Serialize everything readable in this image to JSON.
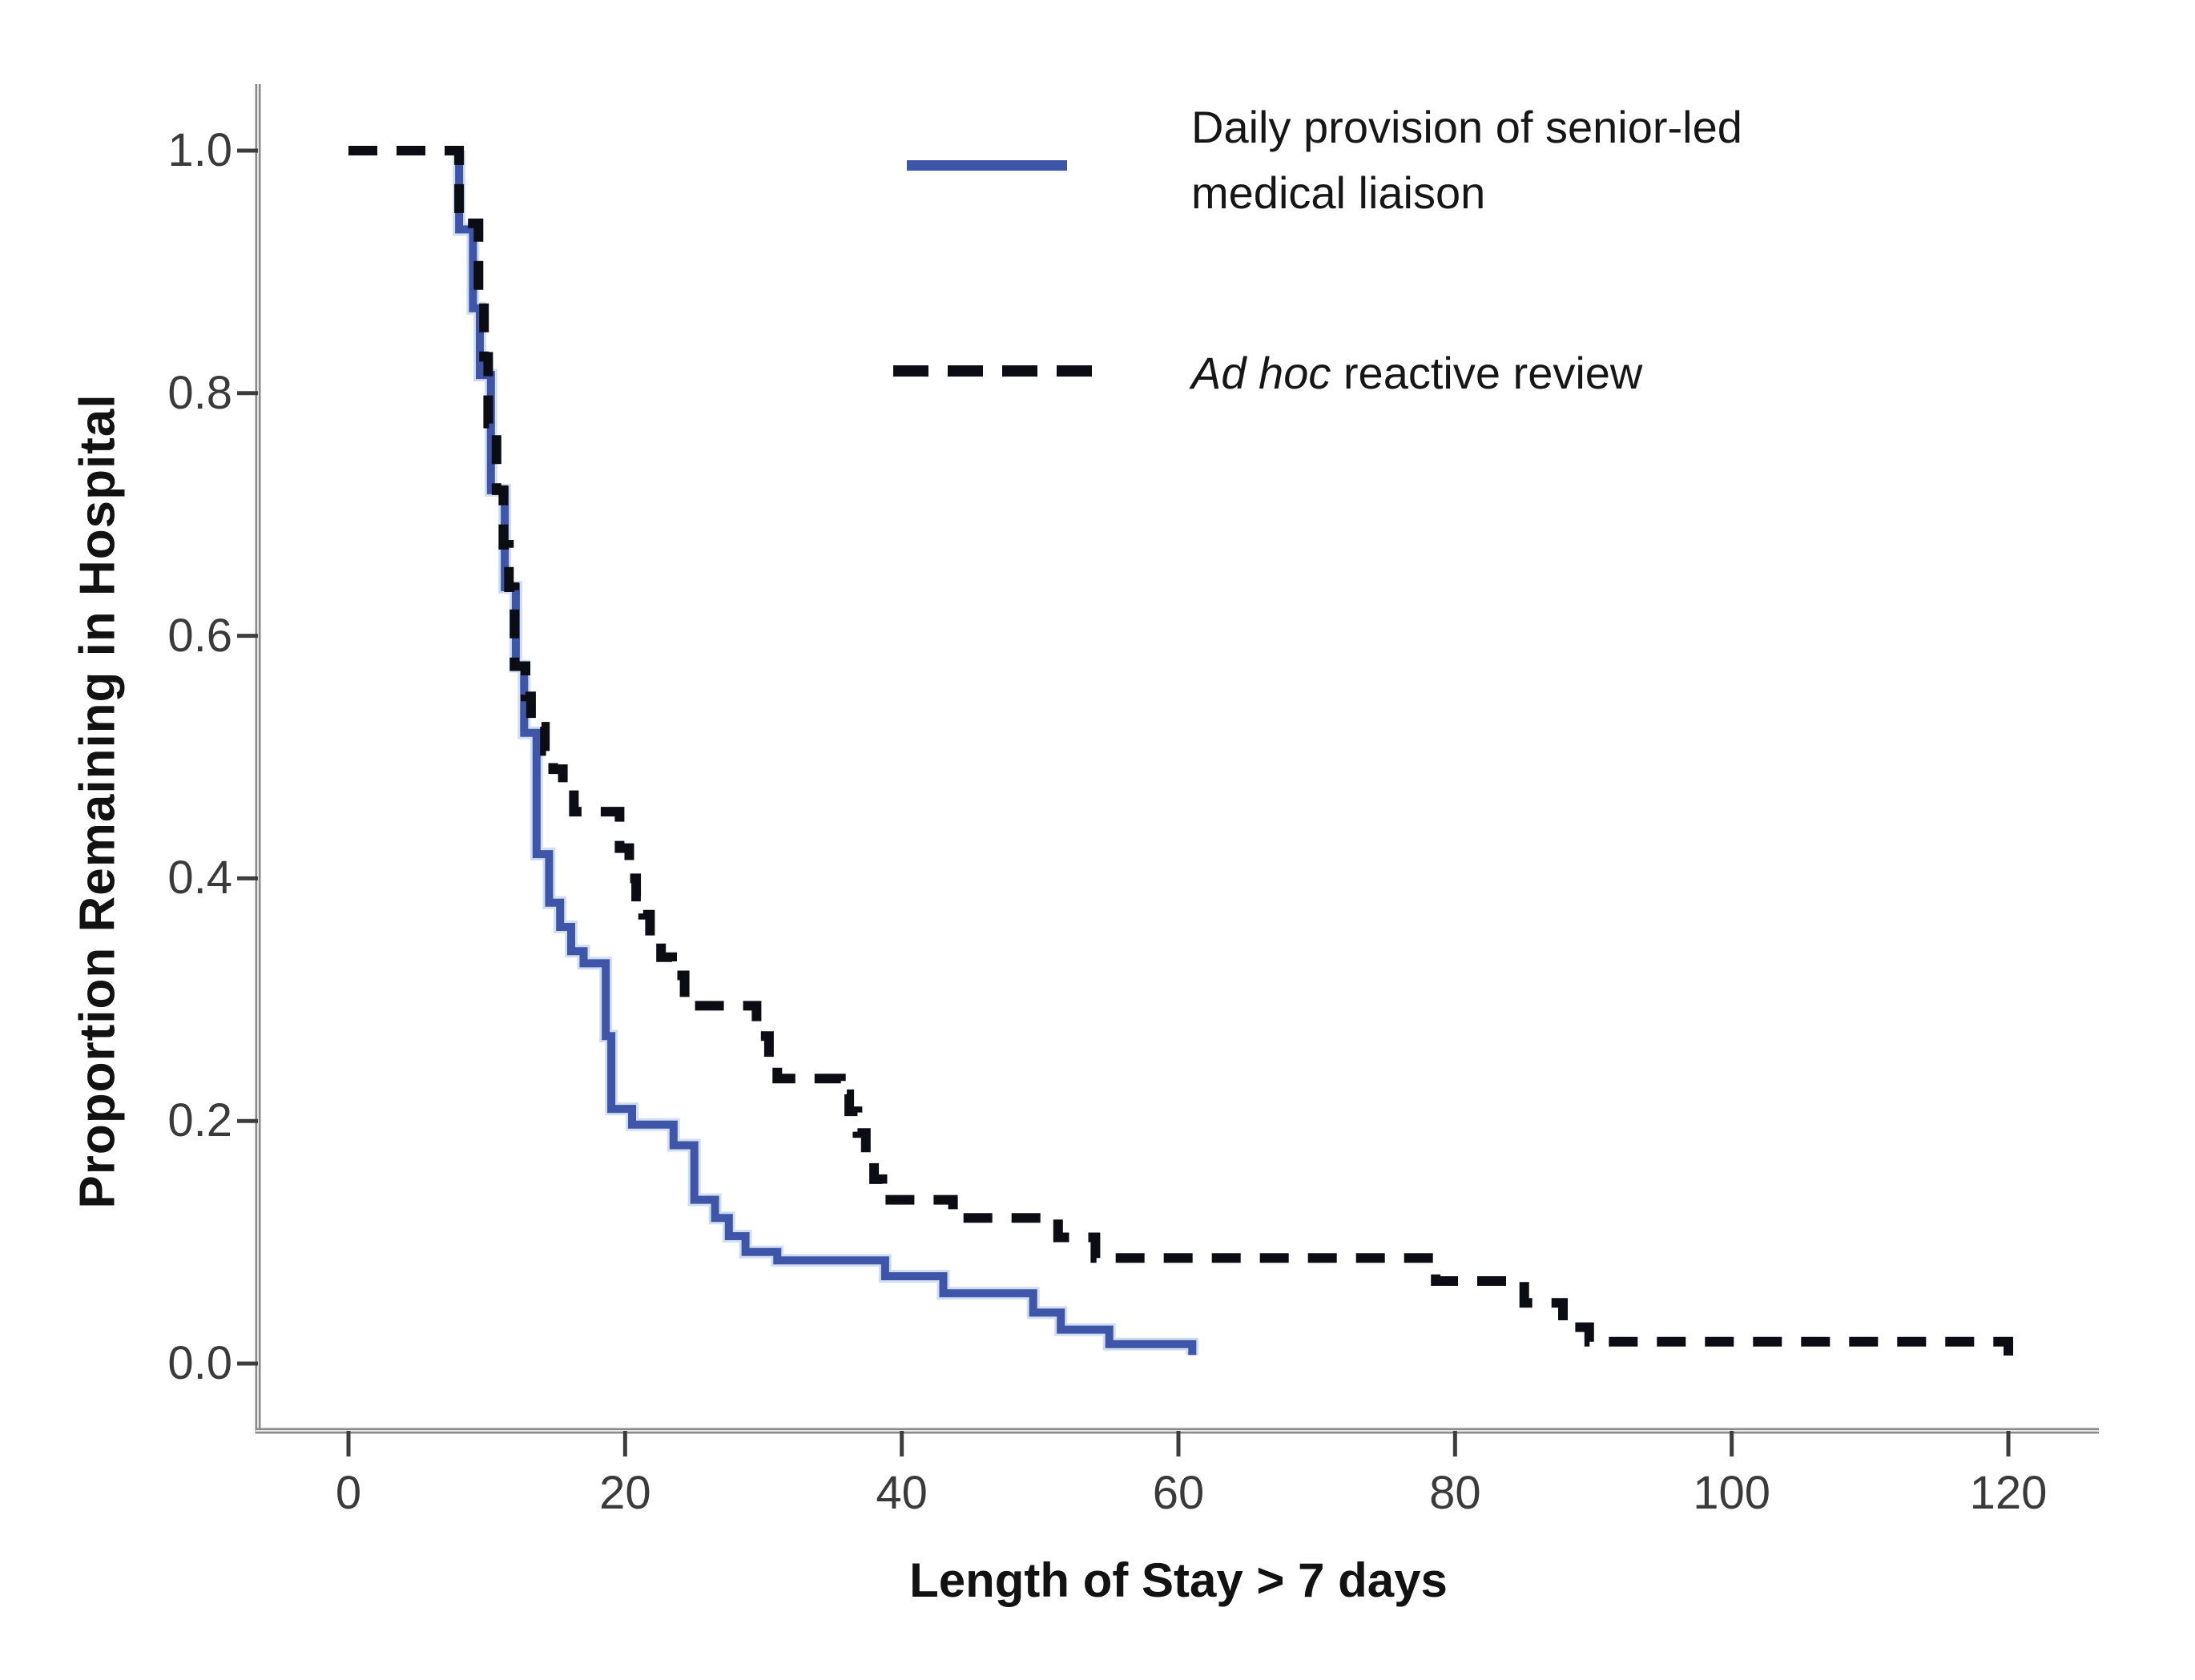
{
  "chart_data": {
    "type": "line",
    "subtype": "kaplan-meier-step",
    "title": "",
    "xlabel": "Length of Stay > 7 days",
    "ylabel": "Proportion Remaining in Hospital",
    "xlim": [
      0,
      120
    ],
    "ylim": [
      0.0,
      1.0
    ],
    "x_tick_values": [
      0,
      20,
      40,
      60,
      80,
      100,
      120
    ],
    "x_tick_labels": [
      "0",
      "20",
      "40",
      "60",
      "80",
      "100",
      "120"
    ],
    "y_tick_values": [
      0.0,
      0.2,
      0.4,
      0.6,
      0.8,
      1.0
    ],
    "y_tick_labels": [
      "0.0",
      "0.2",
      "0.4",
      "0.6",
      "0.8",
      "1.0"
    ],
    "grid": false,
    "legend_position": "top-right-inside",
    "series": [
      {
        "name": "Daily provision of senior-led medical liaison",
        "line_style": "solid",
        "color": "#3f55a8",
        "points": [
          [
            8,
            1.0
          ],
          [
            8,
            0.935
          ],
          [
            9,
            0.935
          ],
          [
            9,
            0.87
          ],
          [
            9.5,
            0.87
          ],
          [
            9.5,
            0.815
          ],
          [
            10.3,
            0.815
          ],
          [
            10.3,
            0.72
          ],
          [
            11.3,
            0.72
          ],
          [
            11.3,
            0.64
          ],
          [
            12.1,
            0.64
          ],
          [
            12.1,
            0.575
          ],
          [
            12.7,
            0.575
          ],
          [
            12.7,
            0.52
          ],
          [
            13.6,
            0.52
          ],
          [
            13.6,
            0.42
          ],
          [
            14.5,
            0.42
          ],
          [
            14.5,
            0.38
          ],
          [
            15.3,
            0.38
          ],
          [
            15.3,
            0.36
          ],
          [
            16.1,
            0.36
          ],
          [
            16.1,
            0.34
          ],
          [
            17,
            0.34
          ],
          [
            17,
            0.33
          ],
          [
            18.6,
            0.33
          ],
          [
            18.6,
            0.27
          ],
          [
            19,
            0.27
          ],
          [
            19,
            0.21
          ],
          [
            20.5,
            0.21
          ],
          [
            20.5,
            0.197
          ],
          [
            23.5,
            0.197
          ],
          [
            23.5,
            0.18
          ],
          [
            25,
            0.18
          ],
          [
            25,
            0.135
          ],
          [
            26.5,
            0.135
          ],
          [
            26.5,
            0.12
          ],
          [
            27.5,
            0.12
          ],
          [
            27.5,
            0.105
          ],
          [
            28.7,
            0.105
          ],
          [
            28.7,
            0.092
          ],
          [
            31,
            0.092
          ],
          [
            31,
            0.085
          ],
          [
            38.8,
            0.085
          ],
          [
            38.8,
            0.072
          ],
          [
            43,
            0.072
          ],
          [
            43,
            0.058
          ],
          [
            49.5,
            0.058
          ],
          [
            49.5,
            0.042
          ],
          [
            51.5,
            0.042
          ],
          [
            51.5,
            0.028
          ],
          [
            55,
            0.028
          ],
          [
            55,
            0.016
          ],
          [
            61,
            0.016
          ],
          [
            61,
            0.007
          ]
        ]
      },
      {
        "name": "Ad hoc reactive review",
        "line_style": "dashed",
        "color": "#0c0c14",
        "points": [
          [
            0,
            1.0
          ],
          [
            8,
            1.0
          ],
          [
            8,
            0.94
          ],
          [
            9.4,
            0.94
          ],
          [
            9.4,
            0.885
          ],
          [
            9.8,
            0.885
          ],
          [
            9.8,
            0.83
          ],
          [
            10.1,
            0.83
          ],
          [
            10.1,
            0.775
          ],
          [
            10.7,
            0.775
          ],
          [
            10.7,
            0.72
          ],
          [
            11.2,
            0.72
          ],
          [
            11.2,
            0.675
          ],
          [
            11.6,
            0.675
          ],
          [
            11.6,
            0.64
          ],
          [
            12,
            0.64
          ],
          [
            12,
            0.575
          ],
          [
            12.8,
            0.575
          ],
          [
            12.8,
            0.55
          ],
          [
            13.2,
            0.55
          ],
          [
            13.2,
            0.525
          ],
          [
            14.2,
            0.525
          ],
          [
            14.2,
            0.505
          ],
          [
            14.8,
            0.505
          ],
          [
            14.8,
            0.49
          ],
          [
            15.5,
            0.49
          ],
          [
            15.5,
            0.475
          ],
          [
            16.3,
            0.475
          ],
          [
            16.3,
            0.455
          ],
          [
            19.6,
            0.455
          ],
          [
            19.6,
            0.425
          ],
          [
            20.3,
            0.425
          ],
          [
            20.3,
            0.4
          ],
          [
            20.8,
            0.4
          ],
          [
            20.8,
            0.385
          ],
          [
            21.3,
            0.385
          ],
          [
            21.3,
            0.37
          ],
          [
            21.8,
            0.37
          ],
          [
            21.8,
            0.35
          ],
          [
            22.6,
            0.35
          ],
          [
            22.6,
            0.335
          ],
          [
            23.4,
            0.335
          ],
          [
            23.4,
            0.32
          ],
          [
            24.3,
            0.32
          ],
          [
            24.3,
            0.295
          ],
          [
            29.5,
            0.295
          ],
          [
            29.5,
            0.27
          ],
          [
            30.4,
            0.27
          ],
          [
            30.4,
            0.25
          ],
          [
            31,
            0.25
          ],
          [
            31,
            0.235
          ],
          [
            35.6,
            0.235
          ],
          [
            35.6,
            0.222
          ],
          [
            36.2,
            0.222
          ],
          [
            36.2,
            0.208
          ],
          [
            36.8,
            0.208
          ],
          [
            36.8,
            0.19
          ],
          [
            37.4,
            0.19
          ],
          [
            37.4,
            0.17
          ],
          [
            38,
            0.17
          ],
          [
            38,
            0.152
          ],
          [
            38.6,
            0.152
          ],
          [
            38.6,
            0.135
          ],
          [
            43.7,
            0.135
          ],
          [
            43.7,
            0.12
          ],
          [
            51.3,
            0.12
          ],
          [
            51.3,
            0.104
          ],
          [
            54,
            0.104
          ],
          [
            54,
            0.087
          ],
          [
            78.6,
            0.087
          ],
          [
            78.6,
            0.068
          ],
          [
            85,
            0.068
          ],
          [
            85,
            0.05
          ],
          [
            87.8,
            0.05
          ],
          [
            87.8,
            0.03
          ],
          [
            89.7,
            0.03
          ],
          [
            89.7,
            0.018
          ],
          [
            120,
            0.018
          ],
          [
            120,
            0.006
          ]
        ]
      }
    ]
  },
  "axes": {
    "xlabel": "Length of Stay > 7 days",
    "ylabel": "Proportion Remaining in Hospital"
  },
  "legend": {
    "item1": {
      "line1": "Daily provision of senior-led",
      "line2": "medical liaison"
    },
    "item2": {
      "italic": "Ad hoc",
      "rest": " reactive review"
    }
  },
  "colors": {
    "blue_line": "#3f55a8",
    "blue_halo": "#aac2e3",
    "black_line": "#0c0c14",
    "axis_line": "#8a8a8a",
    "axis_inner": "#e8e8e8",
    "tick_mark": "#3d3d3d",
    "tick_label": "#3a3a3a",
    "text": "#141414"
  }
}
